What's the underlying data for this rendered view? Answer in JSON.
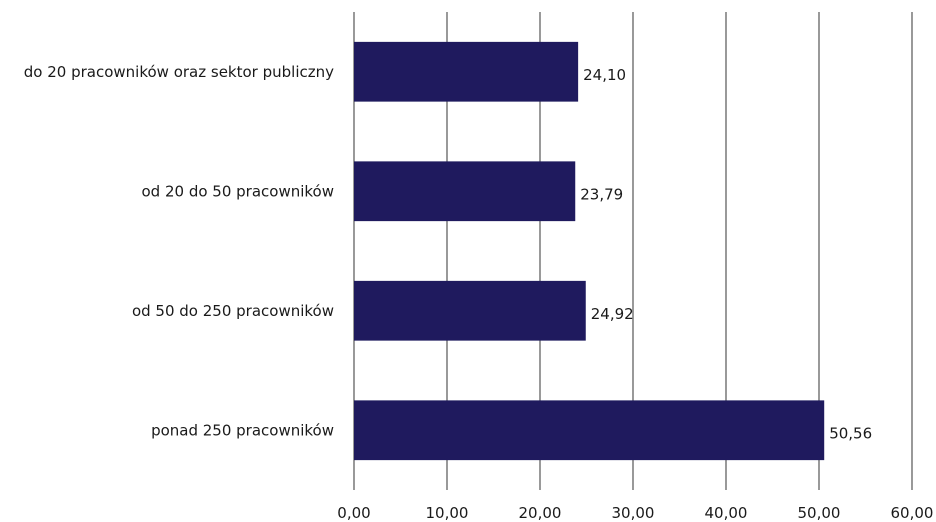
{
  "chart_data": {
    "type": "bar",
    "orientation": "horizontal",
    "categories": [
      "do 20 pracowników oraz sektor publiczny",
      "od 20 do 50 pracowników",
      "od 50 do 250 pracowników",
      "ponad 250 pracowników"
    ],
    "values": [
      24.1,
      23.79,
      24.92,
      50.56
    ],
    "value_labels": [
      "24,10",
      "23,79",
      "24,92",
      "50,56"
    ],
    "xlim": [
      0,
      60
    ],
    "ticks": [
      0,
      10,
      20,
      30,
      40,
      50,
      60
    ],
    "tick_labels": [
      "0,00",
      "10,00",
      "20,00",
      "30,00",
      "40,00",
      "50,00",
      "60,00"
    ],
    "grid": "vertical",
    "bar_color": "#1f1a5e",
    "title": "",
    "xlabel": "",
    "ylabel": ""
  }
}
